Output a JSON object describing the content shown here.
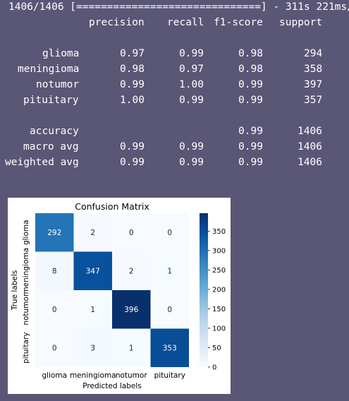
{
  "progress_line": "1406/1406 [==============================] - 311s 221ms/st",
  "report": {
    "headers": [
      "precision",
      "recall",
      "f1-score",
      "support"
    ],
    "rows": [
      {
        "label": "glioma",
        "precision": "0.97",
        "recall": "0.99",
        "f1": "0.98",
        "support": "294"
      },
      {
        "label": "meningioma",
        "precision": "0.98",
        "recall": "0.97",
        "f1": "0.98",
        "support": "358"
      },
      {
        "label": "notumor",
        "precision": "0.99",
        "recall": "1.00",
        "f1": "0.99",
        "support": "397"
      },
      {
        "label": "pituitary",
        "precision": "1.00",
        "recall": "0.99",
        "f1": "0.99",
        "support": "357"
      }
    ],
    "summary": [
      {
        "label": "accuracy",
        "precision": "",
        "recall": "",
        "f1": "0.99",
        "support": "1406"
      },
      {
        "label": "macro avg",
        "precision": "0.99",
        "recall": "0.99",
        "f1": "0.99",
        "support": "1406"
      },
      {
        "label": "weighted avg",
        "precision": "0.99",
        "recall": "0.99",
        "f1": "0.99",
        "support": "1406"
      }
    ]
  },
  "chart_data": {
    "type": "heatmap",
    "title": "Confusion Matrix",
    "xlabel": "Predicted labels",
    "ylabel": "True labels",
    "x_categories": [
      "glioma",
      "meningioma",
      "notumor",
      "pituitary"
    ],
    "y_categories": [
      "glioma",
      "meningioma",
      "notumor",
      "pituitary"
    ],
    "values": [
      [
        292,
        2,
        0,
        0
      ],
      [
        8,
        347,
        2,
        1
      ],
      [
        0,
        1,
        396,
        0
      ],
      [
        0,
        3,
        1,
        353
      ]
    ],
    "colorbar_ticks": [
      0,
      50,
      100,
      150,
      200,
      250,
      300,
      350
    ],
    "vmin": 0,
    "vmax": 396,
    "colormap": "Blues",
    "colors": {
      "low": "#f7fbff",
      "high": "#08306b"
    }
  }
}
